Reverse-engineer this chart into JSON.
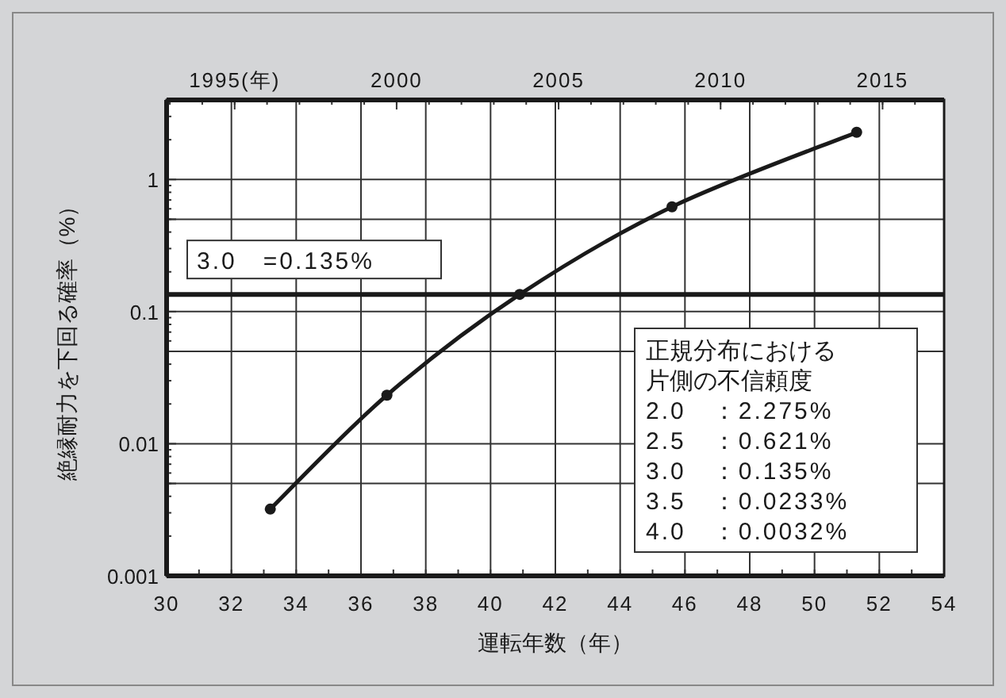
{
  "chart_data": {
    "type": "line",
    "x": [
      33.2,
      36.8,
      40.9,
      45.6,
      51.3
    ],
    "series": [
      {
        "color": "#1a1a1a",
        "values": [
          0.0032,
          0.0233,
          0.135,
          0.621,
          2.275
        ]
      }
    ],
    "xlabel": "運転年数（年）",
    "ylabel": "絶縁耐力を下回る確率（%）",
    "xlim": [
      30,
      54
    ],
    "xticks": [
      30,
      32,
      34,
      36,
      38,
      40,
      42,
      44,
      46,
      48,
      50,
      52,
      54
    ],
    "x2lim": [
      1992.9,
      2016.9
    ],
    "x2ticks": [
      {
        "value": 1995,
        "label": "1995(年)"
      },
      2000,
      2005,
      2010,
      2015
    ],
    "log": "y",
    "ylim": [
      0.001,
      4
    ],
    "yticks": [
      0.001,
      {
        "value": 0.005,
        "label": null
      },
      0.01,
      {
        "value": 0.05,
        "label": null
      },
      0.1,
      {
        "value": 0.5,
        "label": null
      },
      1
    ],
    "grid": true,
    "marker": "circle",
    "line_style": "solid",
    "ref_lines": [
      {
        "axis": "y",
        "value": 0.135,
        "label": "3.0　=0.135%",
        "color": "#1a1a1a"
      }
    ],
    "annotations": [
      "正規分布における",
      "片側の不信頼度",
      "2.0　：2.275%",
      "2.5　：0.621%",
      "3.0　：0.135%",
      "3.5　：0.0233%",
      "4.0　：0.0032%"
    ]
  }
}
